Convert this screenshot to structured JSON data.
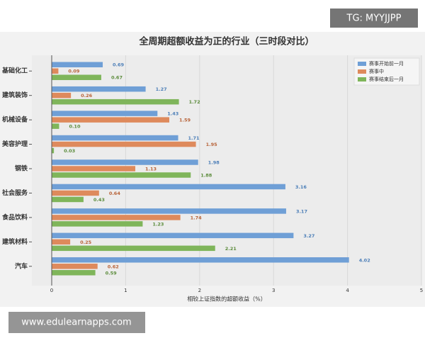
{
  "chart_data": {
    "type": "hbar",
    "title": "全周期超额收益为正的行业（三时段对比）",
    "xlabel": "相较上证指数的超额收益（%）",
    "categories": [
      "基础化工",
      "建筑装饰",
      "机械设备",
      "美容护理",
      "钢铁",
      "社会服务",
      "食品饮料",
      "建筑材料",
      "汽车"
    ],
    "series": [
      {
        "name": "赛事开始前一月",
        "color": "#6f9fd6",
        "values": [
          0.69,
          1.27,
          1.43,
          1.71,
          1.98,
          3.16,
          3.17,
          3.27,
          4.02
        ],
        "value_labels": [
          "0.69",
          "1.27",
          "1.43",
          "1.71",
          "1.98",
          "3.16",
          "3.17",
          "3.27",
          "4.02"
        ]
      },
      {
        "name": "赛事中",
        "color": "#de8a5c",
        "values": [
          0.09,
          0.26,
          1.59,
          1.95,
          1.13,
          0.64,
          1.74,
          0.25,
          0.62
        ],
        "value_labels": [
          "0.09",
          "0.26",
          "1.59",
          "1.95",
          "1.13",
          "0.64",
          "1.74",
          "0.25",
          "0.62"
        ]
      },
      {
        "name": "赛事结束后一月",
        "color": "#7fb55a",
        "values": [
          0.67,
          1.72,
          0.1,
          0.03,
          1.88,
          0.43,
          1.23,
          2.21,
          0.59
        ],
        "value_labels": [
          "0.67",
          "1.72",
          "0.10",
          "0.03",
          "1.88",
          "0.43",
          "1.23",
          "2.21",
          "0.59"
        ]
      }
    ],
    "xlim": [
      0,
      5
    ],
    "xticks": [
      0,
      1,
      2,
      3,
      4,
      5
    ],
    "grid": true,
    "legend": "upper right"
  },
  "watermarks": {
    "top": "TG: MYYJJPP",
    "bottom": "www.edulearnapps.com"
  }
}
